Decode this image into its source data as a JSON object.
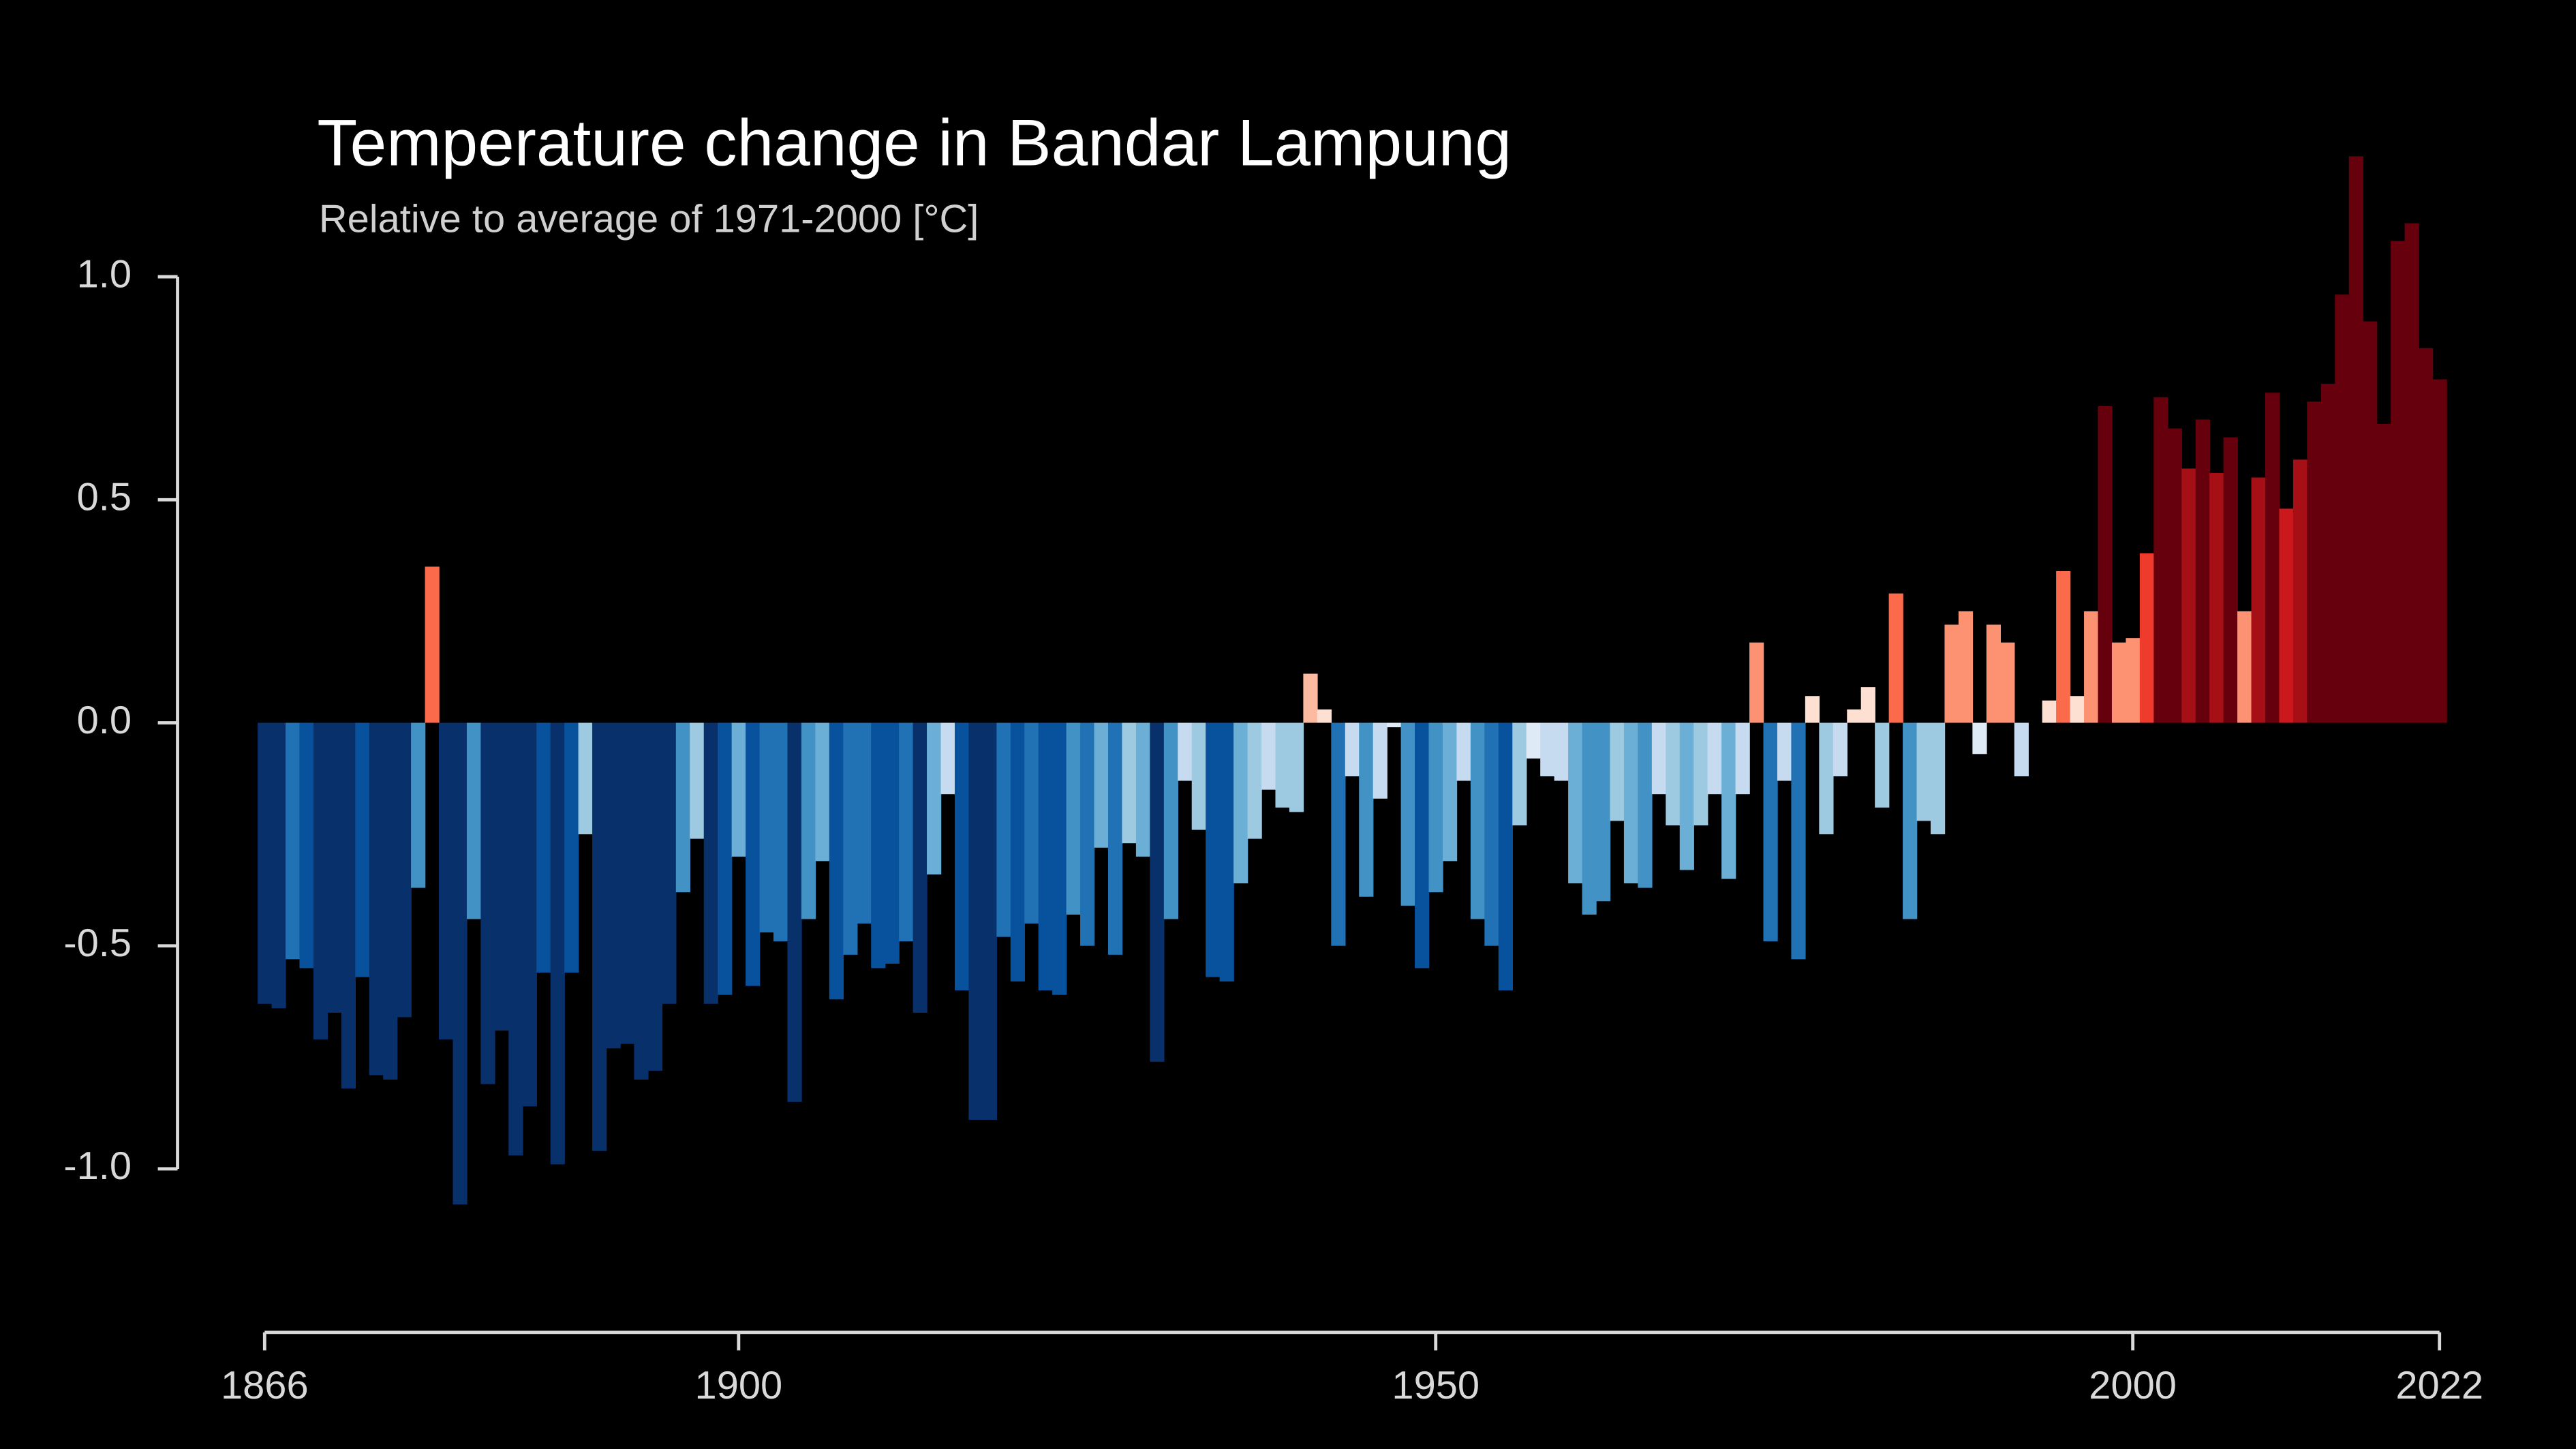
{
  "chart_data": {
    "type": "bar",
    "title": "Temperature change in Bandar Lampung",
    "subtitle": "Relative to average of 1971-2000  [°C]",
    "x": [
      1866,
      1867,
      1868,
      1869,
      1870,
      1871,
      1872,
      1873,
      1874,
      1875,
      1876,
      1877,
      1878,
      1879,
      1880,
      1881,
      1882,
      1883,
      1884,
      1885,
      1886,
      1887,
      1888,
      1889,
      1890,
      1891,
      1892,
      1893,
      1894,
      1895,
      1896,
      1897,
      1898,
      1899,
      1900,
      1901,
      1902,
      1903,
      1904,
      1905,
      1906,
      1907,
      1908,
      1909,
      1910,
      1911,
      1912,
      1913,
      1914,
      1915,
      1916,
      1917,
      1918,
      1919,
      1920,
      1921,
      1922,
      1923,
      1924,
      1925,
      1926,
      1927,
      1928,
      1929,
      1930,
      1931,
      1932,
      1933,
      1934,
      1935,
      1936,
      1937,
      1938,
      1939,
      1940,
      1941,
      1942,
      1943,
      1944,
      1945,
      1946,
      1947,
      1948,
      1949,
      1950,
      1951,
      1952,
      1953,
      1954,
      1955,
      1956,
      1957,
      1958,
      1959,
      1960,
      1961,
      1962,
      1963,
      1964,
      1965,
      1966,
      1967,
      1968,
      1969,
      1970,
      1971,
      1972,
      1973,
      1974,
      1975,
      1976,
      1977,
      1978,
      1979,
      1980,
      1981,
      1982,
      1983,
      1984,
      1985,
      1986,
      1987,
      1988,
      1989,
      1990,
      1991,
      1992,
      1993,
      1994,
      1995,
      1996,
      1997,
      1998,
      1999,
      2000,
      2001,
      2002,
      2003,
      2004,
      2005,
      2006,
      2007,
      2008,
      2009,
      2010,
      2011,
      2012,
      2013,
      2014,
      2015,
      2016,
      2017,
      2018,
      2019,
      2020,
      2021,
      2022
    ],
    "values": [
      -0.63,
      -0.64,
      -0.53,
      -0.55,
      -0.71,
      -0.65,
      -0.82,
      -0.57,
      -0.79,
      -0.8,
      -0.66,
      -0.37,
      0.35,
      -0.71,
      -1.08,
      -0.44,
      -0.81,
      -0.69,
      -0.97,
      -0.86,
      -0.56,
      -0.99,
      -0.56,
      -0.25,
      -0.96,
      -0.73,
      -0.72,
      -0.8,
      -0.78,
      -0.63,
      -0.38,
      -0.26,
      -0.63,
      -0.61,
      -0.3,
      -0.59,
      -0.47,
      -0.49,
      -0.85,
      -0.44,
      -0.31,
      -0.62,
      -0.52,
      -0.45,
      -0.55,
      -0.54,
      -0.49,
      -0.65,
      -0.34,
      -0.16,
      -0.6,
      -0.89,
      -0.89,
      -0.48,
      -0.58,
      -0.45,
      -0.6,
      -0.61,
      -0.43,
      -0.5,
      -0.28,
      -0.52,
      -0.27,
      -0.3,
      -0.76,
      -0.44,
      -0.13,
      -0.24,
      -0.57,
      -0.58,
      -0.36,
      -0.26,
      -0.15,
      -0.19,
      -0.2,
      0.11,
      0.03,
      -0.5,
      -0.12,
      -0.39,
      -0.17,
      -0.01,
      -0.41,
      -0.55,
      -0.38,
      -0.31,
      -0.13,
      -0.44,
      -0.5,
      -0.6,
      -0.23,
      -0.08,
      -0.12,
      -0.13,
      -0.36,
      -0.43,
      -0.4,
      -0.22,
      -0.36,
      -0.37,
      -0.16,
      -0.23,
      -0.33,
      -0.23,
      -0.16,
      -0.35,
      -0.16,
      0.18,
      -0.49,
      -0.13,
      -0.53,
      0.06,
      -0.25,
      -0.12,
      0.03,
      0.08,
      -0.19,
      0.29,
      -0.44,
      -0.22,
      -0.25,
      0.22,
      0.25,
      -0.07,
      0.22,
      0.18,
      -0.12,
      0.0,
      0.05,
      0.34,
      0.06,
      0.25,
      0.71,
      0.18,
      0.19,
      0.38,
      0.73,
      0.66,
      0.57,
      0.68,
      0.56,
      0.64,
      0.25,
      0.55,
      0.74,
      0.48,
      0.59,
      0.72,
      0.76,
      0.96,
      1.27,
      0.9,
      0.67,
      1.08,
      1.12,
      0.84,
      0.77
    ],
    "colormap": [
      "#08306b",
      "#08519c",
      "#2171b5",
      "#4292c6",
      "#6baed6",
      "#9ecae1",
      "#c6dbef",
      "#deebf7",
      "#fee0d2",
      "#fcbba1",
      "#fc9272",
      "#fb6a4a",
      "#ef3b2c",
      "#cb181d",
      "#a50f15",
      "#67000d"
    ],
    "color_range": [
      -0.72,
      0.72
    ],
    "xlim": [
      1866,
      2022
    ],
    "xticks": [
      1866,
      1900,
      1950,
      2000,
      2022
    ],
    "ylim": [
      -1.35,
      1.3
    ],
    "yticks": [
      {
        "value": -1,
        "label": "-1.0"
      },
      {
        "value": -0.5,
        "label": "-0.5"
      },
      {
        "value": 0,
        "label": "0.0"
      },
      {
        "value": 0.5,
        "label": "0.5"
      },
      {
        "value": 1,
        "label": "1.0"
      }
    ]
  }
}
